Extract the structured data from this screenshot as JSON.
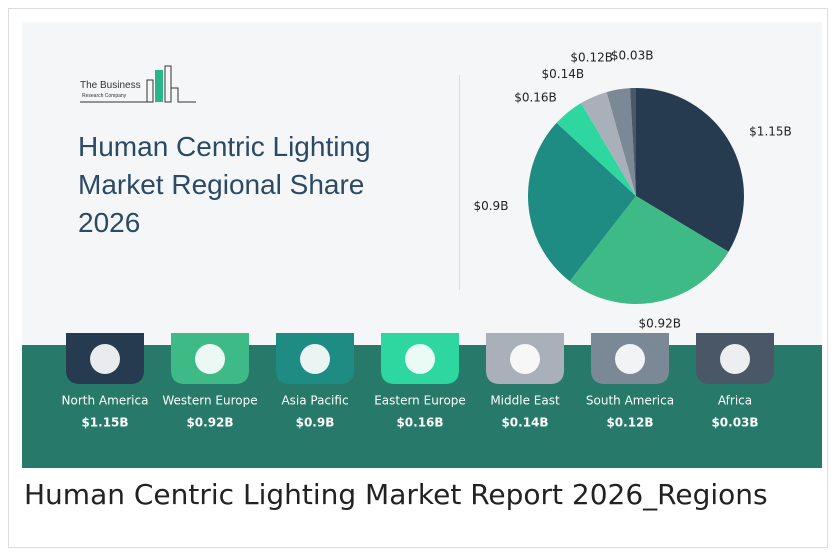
{
  "logo": {
    "name": "The Business",
    "sub": "Research Company"
  },
  "caption": "Human Centric Lighting Market Report 2026_Regions",
  "chart_data": {
    "type": "pie",
    "title": "Human Centric Lighting Market Regional Share 2026",
    "categories": [
      "North America",
      "Western Europe",
      "Asia Pacific",
      "Eastern Europe",
      "Middle East",
      "South America",
      "Africa"
    ],
    "values": [
      1.15,
      0.92,
      0.9,
      0.16,
      0.14,
      0.12,
      0.03
    ],
    "value_labels": [
      "$1.15B",
      "$0.92B",
      "$0.9B",
      "$0.16B",
      "$0.14B",
      "$0.12B",
      "$0.03B"
    ],
    "colors": [
      "#263b50",
      "#3dba86",
      "#1e8c82",
      "#2ed7a0",
      "#a9b0b9",
      "#7b8896",
      "#4a5767"
    ]
  }
}
